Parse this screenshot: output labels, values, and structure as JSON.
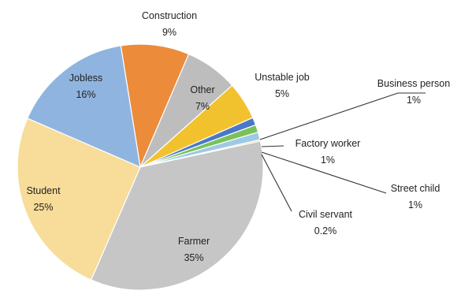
{
  "chart_data": {
    "type": "pie",
    "title": "",
    "slices": [
      {
        "label": "Construction",
        "value_label": "9%",
        "value": 9,
        "color": "#ec8b3a"
      },
      {
        "label": "Other",
        "value_label": "7%",
        "value": 7,
        "color": "#bdbdbd"
      },
      {
        "label": "Unstable job",
        "value_label": "5%",
        "value": 5,
        "color": "#f2c22e"
      },
      {
        "label": "Business person",
        "value_label": "1%",
        "value": 1,
        "color": "#4a78c8"
      },
      {
        "label": "Factory worker",
        "value_label": "1%",
        "value": 1,
        "color": "#79c25a"
      },
      {
        "label": "Street child",
        "value_label": "1%",
        "value": 1,
        "color": "#9ec9e6"
      },
      {
        "label": "Civil servant",
        "value_label": "0.2%",
        "value": 0.2,
        "color": "#f0c98a"
      },
      {
        "label": "Farmer",
        "value_label": "35%",
        "value": 35,
        "color": "#c6c6c6"
      },
      {
        "label": "Student",
        "value_label": "25%",
        "value": 25,
        "color": "#f8dc9a"
      },
      {
        "label": "Jobless",
        "value_label": "16%",
        "value": 16,
        "color": "#8fb4df"
      }
    ]
  }
}
